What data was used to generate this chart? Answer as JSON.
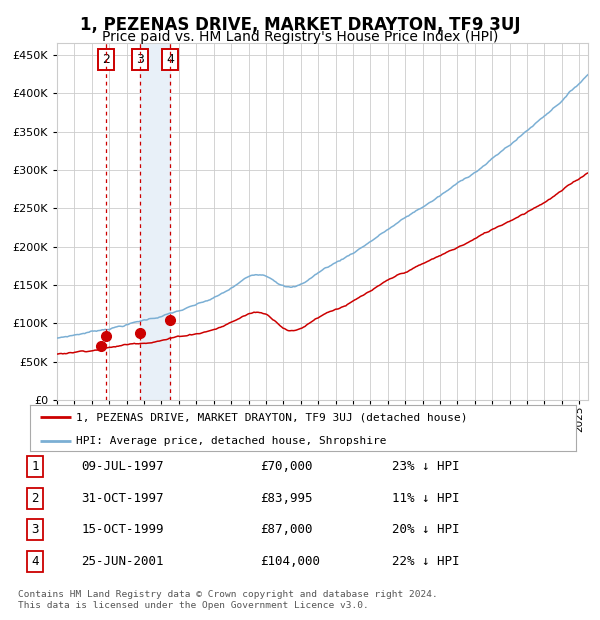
{
  "title": "1, PEZENAS DRIVE, MARKET DRAYTON, TF9 3UJ",
  "subtitle": "Price paid vs. HM Land Registry's House Price Index (HPI)",
  "title_fontsize": 12,
  "subtitle_fontsize": 10,
  "ytick_vals": [
    0,
    50000,
    100000,
    150000,
    200000,
    250000,
    300000,
    350000,
    400000,
    450000
  ],
  "ylim": [
    0,
    465000
  ],
  "xlim_start": 1995.0,
  "xlim_end": 2025.5,
  "sale_dates": [
    1997.52,
    1997.83,
    1999.79,
    2001.48
  ],
  "sale_prices": [
    70000,
    83995,
    87000,
    104000
  ],
  "sale_label_dates": [
    1997.83,
    1999.79,
    2001.48
  ],
  "sale_label_nums": [
    "2",
    "3",
    "4"
  ],
  "vline_dates": [
    1997.83,
    1999.79,
    2001.48
  ],
  "highlight_start": 1999.79,
  "highlight_end": 2001.48,
  "legend_line1": "1, PEZENAS DRIVE, MARKET DRAYTON, TF9 3UJ (detached house)",
  "legend_line2": "HPI: Average price, detached house, Shropshire",
  "table_rows": [
    [
      "1",
      "09-JUL-1997",
      "£70,000",
      "23% ↓ HPI"
    ],
    [
      "2",
      "31-OCT-1997",
      "£83,995",
      "11% ↓ HPI"
    ],
    [
      "3",
      "15-OCT-1999",
      "£87,000",
      "20% ↓ HPI"
    ],
    [
      "4",
      "25-JUN-2001",
      "£104,000",
      "22% ↓ HPI"
    ]
  ],
  "footer": "Contains HM Land Registry data © Crown copyright and database right 2024.\nThis data is licensed under the Open Government Licence v3.0.",
  "red_color": "#cc0000",
  "blue_color": "#7bafd4",
  "highlight_color": "#e8f0f8",
  "grid_color": "#cccccc",
  "background_color": "#ffffff"
}
